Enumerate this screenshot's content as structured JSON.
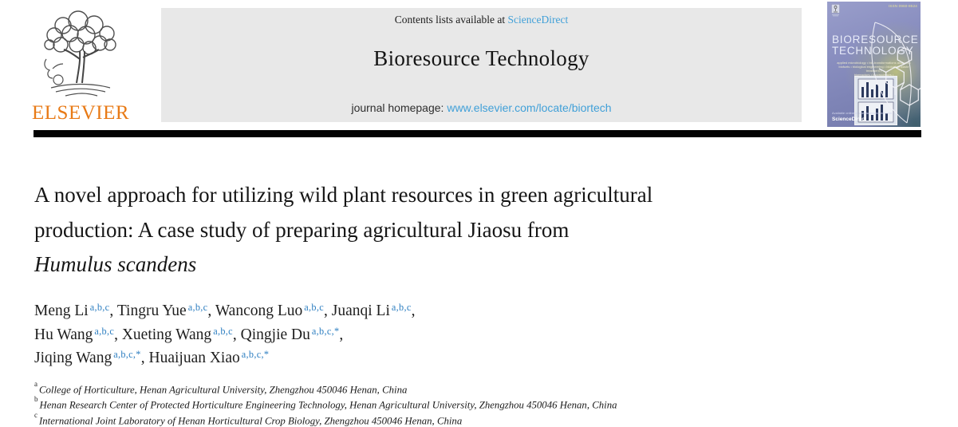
{
  "header": {
    "elsevier_wordmark": "ELSEVIER",
    "contents_prefix": "Contents lists available at ",
    "contents_link": "ScienceDirect",
    "journal_title": "Bioresource Technology",
    "homepage_label": "journal homepage: ",
    "homepage_link": "www.elsevier.com/locate/biortech",
    "colors": {
      "link_blue": "#41a0d8",
      "superscript_blue": "#2e7fc1",
      "elsevier_orange": "#e87a16",
      "header_bg": "#e8e8e8"
    }
  },
  "cover": {
    "issn": "ISSN 0960-8524",
    "title_line1": "BIORESOURCE",
    "title_line2": "TECHNOLOGY",
    "category_lines": [
      "applied microbiology • bio-transformations analysis •",
      "biofuels • biological engineering • biological waste treatment •",
      "bioreactors • bioprocesses •",
      "thermo-chemical treatment"
    ],
    "footer_note": "Available online at www.sciencedirect.com",
    "footer_brand": "ScienceDirect"
  },
  "article": {
    "title_line1": "A novel approach for utilizing wild plant resources in green agricultural",
    "title_line2": "production: A case study of preparing agricultural Jiaosu from",
    "title_line3_italic": "Humulus scandens",
    "author_lines": [
      [
        {
          "name": "Meng Li",
          "sup": "a,b,c",
          "sep": ", "
        },
        {
          "name": "Tingru Yue",
          "sup": "a,b,c",
          "sep": ", "
        },
        {
          "name": "Wancong Luo",
          "sup": "a,b,c",
          "sep": ", "
        },
        {
          "name": "Juanqi Li",
          "sup": "a,b,c",
          "sep": ","
        }
      ],
      [
        {
          "name": "Hu Wang",
          "sup": "a,b,c",
          "sep": ", "
        },
        {
          "name": "Xueting Wang",
          "sup": "a,b,c",
          "sep": ", "
        },
        {
          "name": "Qingjie Du",
          "sup": "a,b,c,*",
          "sep": ","
        }
      ],
      [
        {
          "name": "Jiqing Wang",
          "sup": "a,b,c,*",
          "sep": ", "
        },
        {
          "name": "Huaijuan Xiao",
          "sup": "a,b,c,*",
          "sep": ""
        }
      ]
    ],
    "affiliations": [
      {
        "marker": "a",
        "text": "College of Horticulture, Henan Agricultural University, Zhengzhou 450046 Henan, China"
      },
      {
        "marker": "b",
        "text": "Henan Research Center of Protected Horticulture Engineering Technology, Henan Agricultural University, Zhengzhou 450046 Henan, China"
      },
      {
        "marker": "c",
        "text": "International Joint Laboratory of Henan Horticultural Crop Biology, Zhengzhou 450046 Henan, China"
      }
    ]
  }
}
